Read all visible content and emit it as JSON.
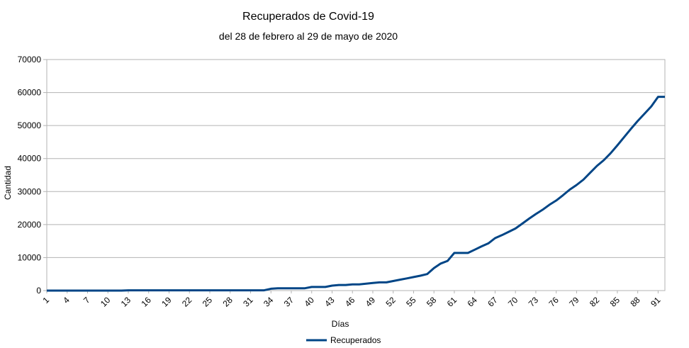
{
  "chart_data": {
    "type": "line",
    "title": "Recuperados de Covid-19",
    "subtitle": "del 28 de febrero al 29 de mayo de 2020",
    "xlabel": "Días",
    "ylabel": "Cantidad",
    "ylim": [
      0,
      70000
    ],
    "yticks": [
      "0",
      "10000",
      "20000",
      "30000",
      "40000",
      "50000",
      "60000",
      "70000"
    ],
    "xlim": [
      1,
      92
    ],
    "xticks": [
      "1",
      "4",
      "7",
      "10",
      "13",
      "16",
      "19",
      "22",
      "25",
      "28",
      "31",
      "34",
      "37",
      "40",
      "43",
      "46",
      "49",
      "52",
      "55",
      "58",
      "61",
      "64",
      "67",
      "70",
      "73",
      "76",
      "79",
      "82",
      "85",
      "88",
      "91"
    ],
    "grid": true,
    "legend_position": "bottom",
    "color": "#004586",
    "x": [
      1,
      2,
      3,
      4,
      5,
      6,
      7,
      8,
      9,
      10,
      11,
      12,
      13,
      14,
      15,
      16,
      17,
      18,
      19,
      20,
      21,
      22,
      23,
      24,
      25,
      26,
      27,
      28,
      29,
      30,
      31,
      32,
      33,
      34,
      35,
      36,
      37,
      38,
      39,
      40,
      41,
      42,
      43,
      44,
      45,
      46,
      47,
      48,
      49,
      50,
      51,
      52,
      53,
      54,
      55,
      56,
      57,
      58,
      59,
      60,
      61,
      62,
      63,
      64,
      65,
      66,
      67,
      68,
      69,
      70,
      71,
      72,
      73,
      74,
      75,
      76,
      77,
      78,
      79,
      80,
      81,
      82,
      83,
      84,
      85,
      86,
      87,
      88,
      89,
      90,
      91,
      92
    ],
    "series": [
      {
        "name": "Recuperados",
        "values": [
          0,
          0,
          0,
          0,
          0,
          0,
          0,
          0,
          0,
          0,
          0,
          0,
          80,
          80,
          80,
          80,
          80,
          80,
          80,
          80,
          80,
          80,
          80,
          80,
          80,
          80,
          80,
          80,
          80,
          80,
          80,
          80,
          80,
          550,
          700,
          700,
          700,
          700,
          700,
          1100,
          1100,
          1100,
          1500,
          1700,
          1700,
          1900,
          1900,
          2100,
          2300,
          2500,
          2500,
          2900,
          3300,
          3700,
          4100,
          4500,
          5000,
          6800,
          8200,
          9000,
          11400,
          11400,
          11400,
          12400,
          13400,
          14300,
          15900,
          16800,
          17800,
          18800,
          20300,
          21800,
          23200,
          24500,
          26000,
          27300,
          28900,
          30600,
          32000,
          33600,
          35700,
          37800,
          39500,
          41600,
          44000,
          46500,
          49000,
          51400,
          53600,
          55800,
          58700,
          58700
        ]
      }
    ]
  }
}
